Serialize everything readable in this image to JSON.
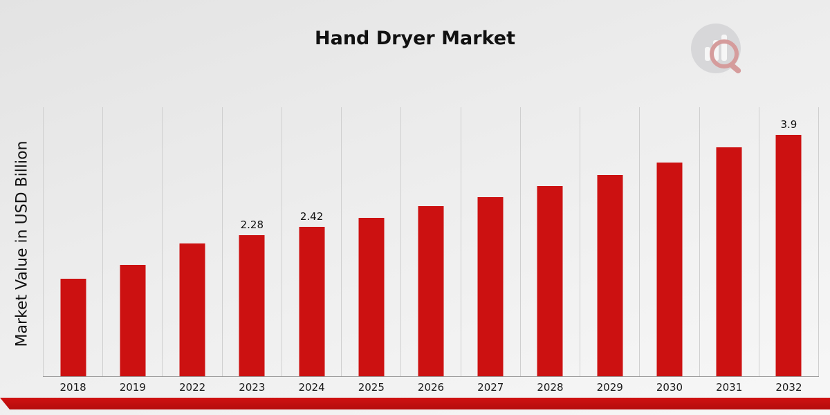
{
  "title": "Hand Dryer Market",
  "y_axis_label": "Market Value in USD Billion",
  "colors": {
    "bar": "#cc1111",
    "footer_band": "#b40c0c",
    "gridline": "#cfcfcf",
    "background_top": "#e3e3e3",
    "background_bottom": "#f7f7f7"
  },
  "icons": {
    "brand_logo": "bar-chart-with-magnifier-logo"
  },
  "chart_data": {
    "type": "bar",
    "title": "Hand Dryer Market",
    "ylabel": "Market Value in USD Billion",
    "xlabel": "",
    "categories": [
      "2018",
      "2019",
      "2022",
      "2023",
      "2024",
      "2025",
      "2026",
      "2027",
      "2028",
      "2029",
      "2030",
      "2031",
      "2032"
    ],
    "values": [
      1.58,
      1.8,
      2.15,
      2.28,
      2.42,
      2.56,
      2.75,
      2.9,
      3.08,
      3.25,
      3.45,
      3.7,
      3.9
    ],
    "data_labels": [
      null,
      null,
      null,
      "2.28",
      "2.42",
      null,
      null,
      null,
      null,
      null,
      null,
      null,
      "3.9"
    ],
    "ylim": [
      0,
      4.35
    ],
    "grid": "vertical",
    "legend": "none",
    "bar_color": "#cc1111"
  }
}
